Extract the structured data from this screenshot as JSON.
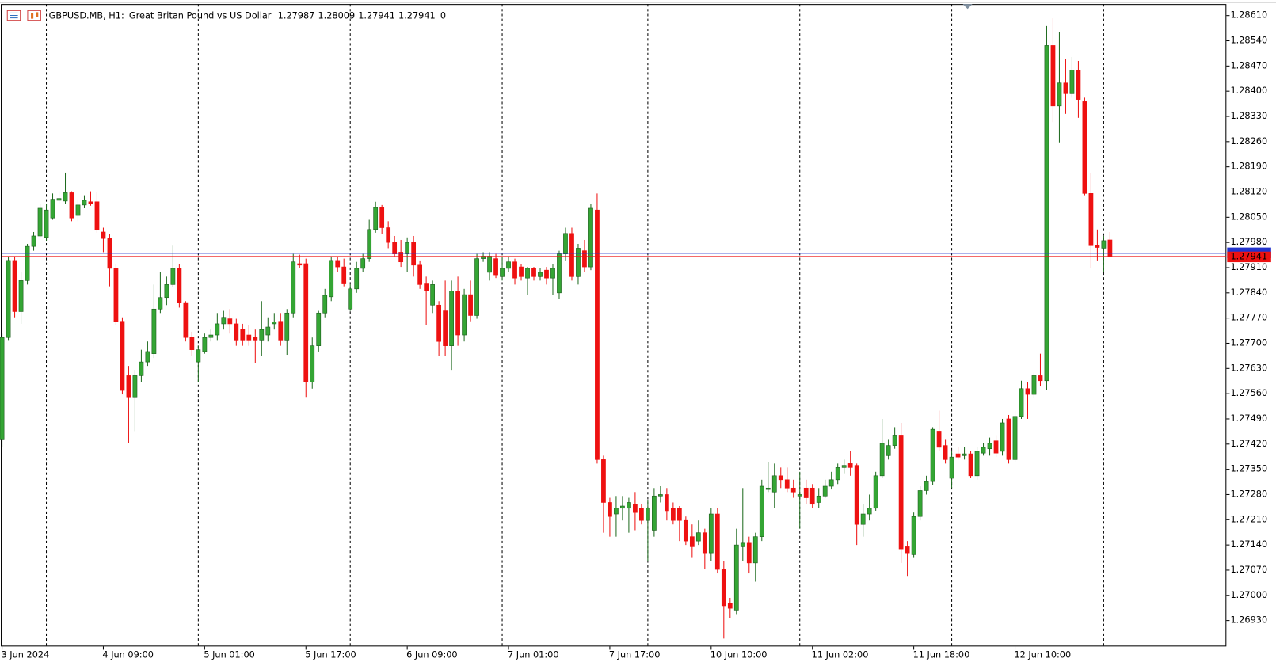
{
  "chart_data": {
    "type": "candlestick",
    "symbol": "GBPUSD.MB, H1:",
    "description": "Great Britan Pound vs US Dollar",
    "volume": 0,
    "x": [
      "3 Jun 2024",
      null,
      null,
      null,
      null,
      null,
      null,
      null,
      null,
      null,
      null,
      null,
      null,
      null,
      null,
      null,
      "4 Jun 09:00",
      null,
      null,
      null,
      null,
      null,
      null,
      null,
      null,
      null,
      null,
      null,
      null,
      null,
      null,
      null,
      "5 Jun 01:00",
      null,
      null,
      null,
      null,
      null,
      null,
      null,
      null,
      null,
      null,
      null,
      null,
      null,
      null,
      null,
      "5 Jun 17:00",
      null,
      null,
      null,
      null,
      null,
      null,
      null,
      null,
      null,
      null,
      null,
      null,
      null,
      null,
      null,
      "6 Jun 09:00",
      null,
      null,
      null,
      null,
      null,
      null,
      null,
      null,
      null,
      null,
      null,
      null,
      null,
      null,
      null,
      "7 Jun 01:00",
      null,
      null,
      null,
      null,
      null,
      null,
      null,
      null,
      null,
      null,
      null,
      null,
      null,
      null,
      null,
      "7 Jun 17:00",
      null,
      null,
      null,
      null,
      null,
      null,
      null,
      null,
      null,
      null,
      null,
      null,
      null,
      null,
      null,
      "10 Jun 10:00",
      null,
      null,
      null,
      null,
      null,
      null,
      null,
      null,
      null,
      null,
      null,
      null,
      null,
      null,
      null,
      "11 Jun 02:00",
      null,
      null,
      null,
      null,
      null,
      null,
      null,
      null,
      null,
      null,
      null,
      null,
      null,
      null,
      null,
      "11 Jun 18:00",
      null,
      null,
      null,
      null,
      null,
      null,
      null,
      null,
      null,
      null,
      null,
      null,
      null,
      null,
      null,
      "12 Jun 10:00",
      null,
      null,
      null,
      null,
      null,
      null,
      null,
      null,
      null,
      null,
      null,
      null,
      null,
      null,
      null
    ],
    "open": [
      1.27434,
      1.27716,
      1.2793,
      1.27788,
      1.27874,
      1.27969,
      1.27998,
      1.27994,
      1.28048,
      1.28097,
      1.28095,
      1.28118,
      1.28055,
      1.28084,
      1.28093,
      1.28093,
      1.28009,
      1.27991,
      1.27908,
      1.27761,
      1.2761,
      1.27551,
      1.2761,
      1.27648,
      1.27671,
      1.27795,
      1.27827,
      1.27863,
      1.27908,
      1.27813,
      1.27716,
      1.27648,
      1.27677,
      1.27716,
      1.27723,
      1.27754,
      1.27768,
      1.27754,
      1.27738,
      1.27723,
      1.27718,
      1.27709,
      1.27723,
      1.27754,
      1.27761,
      1.27709,
      1.27784,
      1.27921,
      1.27921,
      1.27592,
      1.27693,
      1.27784,
      1.27829,
      1.2793,
      1.27912,
      1.27795,
      1.27851,
      1.27908,
      1.27935,
      1.28016,
      1.28077,
      1.28021,
      1.2798,
      1.27953,
      1.27948,
      1.2798,
      1.27917,
      1.27867,
      1.27806,
      1.27806,
      1.2779,
      1.27693,
      1.27845,
      1.27723,
      1.27835,
      1.27777,
      1.27935,
      1.27897,
      1.27935,
      1.27885,
      1.27908,
      1.27926,
      1.27912,
      1.27881,
      1.27908,
      1.27885,
      1.27903,
      1.27881,
      1.2784,
      1.27948,
      1.28005,
      1.27885,
      1.27957,
      1.27912,
      1.2807,
      1.27377,
      1.27258,
      1.27226,
      1.27242,
      1.27242,
      1.27253,
      1.27242,
      1.27208,
      1.27181,
      1.27276,
      1.2728,
      1.27242,
      1.27242,
      1.27208,
      1.27163,
      1.27151,
      1.27174,
      1.27118,
      1.27226,
      1.27072,
      1.26977,
      1.26959,
      1.27135,
      1.27145,
      1.2709,
      1.27163,
      1.27294,
      1.27287,
      1.27332,
      1.27321,
      1.27298,
      1.27276,
      1.27298,
      1.27298,
      1.27258,
      1.27276,
      1.27303,
      1.27321,
      1.27355,
      1.27366,
      1.27361,
      1.27197,
      1.27226,
      1.27242,
      1.27332,
      1.27388,
      1.27416,
      1.27445,
      1.27135,
      1.27113,
      1.27219,
      1.27291,
      1.27316,
      1.27456,
      1.27416,
      1.27325,
      1.27393,
      1.27388,
      1.27393,
      1.27332,
      1.27395,
      1.27407,
      1.27429,
      1.274,
      1.2749,
      1.27377,
      1.27497,
      1.27574,
      1.27558,
      1.2761,
      1.27596,
      1.28527,
      1.28359,
      1.28423,
      1.28393,
      1.28459,
      1.28371,
      1.28116,
      1.27971,
      1.27964,
      1.27987
    ],
    "high": [
      1.27727,
      1.27942,
      1.27942,
      1.27897,
      1.27976,
      1.28009,
      1.28088,
      1.28088,
      1.28116,
      1.28122,
      1.28174,
      1.28122,
      1.281,
      1.28111,
      1.28122,
      1.2812,
      1.28021,
      1.28003,
      1.27919,
      1.27772,
      1.27637,
      1.27626,
      1.27682,
      1.27705,
      1.27863,
      1.27897,
      1.27885,
      1.27971,
      1.27919,
      1.27817,
      1.27732,
      1.27693,
      1.27727,
      1.27738,
      1.27784,
      1.2779,
      1.27795,
      1.27768,
      1.27754,
      1.2775,
      1.27738,
      1.27817,
      1.27772,
      1.27784,
      1.27784,
      1.27795,
      1.27948,
      1.27946,
      1.27935,
      1.27716,
      1.2779,
      1.27851,
      1.27942,
      1.27939,
      1.27935,
      1.27863,
      1.27926,
      1.27948,
      1.28043,
      1.28093,
      1.28084,
      1.28039,
      1.27998,
      1.27987,
      1.27994,
      1.27998,
      1.2793,
      1.27885,
      1.27874,
      1.27817,
      1.27874,
      1.27874,
      1.27885,
      1.27851,
      1.27874,
      1.27948,
      1.27953,
      1.27953,
      1.27948,
      1.27942,
      1.27942,
      1.27935,
      1.27919,
      1.27912,
      1.27912,
      1.27908,
      1.27912,
      1.27919,
      1.27957,
      1.28021,
      1.28021,
      1.27976,
      1.27987,
      1.28088,
      1.28116,
      1.27388,
      1.27271,
      1.27276,
      1.27276,
      1.27271,
      1.27287,
      1.27253,
      1.27264,
      1.27298,
      1.27303,
      1.27298,
      1.27258,
      1.27248,
      1.27219,
      1.27197,
      1.27208,
      1.27185,
      1.27242,
      1.27242,
      1.27095,
      1.26993,
      1.27185,
      1.27298,
      1.27163,
      1.27174,
      1.27321,
      1.2737,
      1.27366,
      1.27355,
      1.27355,
      1.27321,
      1.27343,
      1.27321,
      1.27309,
      1.27298,
      1.27321,
      1.27343,
      1.27366,
      1.27377,
      1.274,
      1.27366,
      1.27253,
      1.2728,
      1.27343,
      1.2749,
      1.27434,
      1.27467,
      1.27479,
      1.27151,
      1.2723,
      1.27303,
      1.27332,
      1.27467,
      1.27513,
      1.27434,
      1.274,
      1.27411,
      1.27411,
      1.274,
      1.27411,
      1.27422,
      1.27438,
      1.27445,
      1.2749,
      1.27501,
      1.27513,
      1.27596,
      1.27592,
      1.27619,
      1.27671,
      1.28581,
      1.28603,
      1.28563,
      1.2849,
      1.28495,
      1.28484,
      1.28382,
      1.28174,
      1.28016,
      1.27998,
      1.28009
    ],
    "low": [
      1.27411,
      1.27709,
      1.27772,
      1.27754,
      1.27863,
      1.27957,
      1.27994,
      1.27985,
      1.28043,
      1.28088,
      1.28088,
      1.28039,
      1.28039,
      1.28075,
      1.28082,
      1.28007,
      1.27953,
      1.27858,
      1.2775,
      1.27558,
      1.27422,
      1.27456,
      1.27592,
      1.27637,
      1.27659,
      1.27784,
      1.27806,
      1.27856,
      1.27799,
      1.27705,
      1.27664,
      1.27592,
      1.27671,
      1.27705,
      1.27709,
      1.27738,
      1.27727,
      1.27693,
      1.27693,
      1.27693,
      1.27646,
      1.27664,
      1.27705,
      1.27738,
      1.27693,
      1.27668,
      1.27772,
      1.27908,
      1.27551,
      1.27574,
      1.27677,
      1.27772,
      1.27817,
      1.27897,
      1.27858,
      1.2779,
      1.2784,
      1.27897,
      1.27926,
      1.28007,
      1.28003,
      1.27964,
      1.27942,
      1.27912,
      1.27897,
      1.27885,
      1.27851,
      1.2775,
      1.27784,
      1.27664,
      1.27664,
      1.27626,
      1.27693,
      1.27705,
      1.27761,
      1.27768,
      1.27926,
      1.27874,
      1.27881,
      1.27874,
      1.27897,
      1.27863,
      1.27874,
      1.27835,
      1.27874,
      1.27874,
      1.27863,
      1.27835,
      1.27822,
      1.2793,
      1.27874,
      1.27863,
      1.27897,
      1.27903,
      1.27366,
      1.27174,
      1.27163,
      1.27163,
      1.27208,
      1.27174,
      1.27181,
      1.27197,
      1.27095,
      1.27163,
      1.27258,
      1.27208,
      1.27197,
      1.27151,
      1.2714,
      1.27106,
      1.2714,
      1.27072,
      1.27095,
      1.27061,
      1.2688,
      1.26937,
      1.26948,
      1.27095,
      1.27061,
      1.27038,
      1.27151,
      1.27287,
      1.27242,
      1.27298,
      1.27287,
      1.27271,
      1.27185,
      1.27253,
      1.27242,
      1.27242,
      1.27271,
      1.27294,
      1.27309,
      1.27339,
      1.27332,
      1.2714,
      1.27163,
      1.27208,
      1.27235,
      1.27325,
      1.27377,
      1.27407,
      1.2709,
      1.27054,
      1.27106,
      1.27208,
      1.2728,
      1.27307,
      1.274,
      1.27366,
      1.27298,
      1.27377,
      1.27377,
      1.27325,
      1.27321,
      1.27388,
      1.27388,
      1.27384,
      1.27388,
      1.27366,
      1.2737,
      1.2749,
      1.2749,
      1.27547,
      1.2758,
      1.27569,
      1.28314,
      1.28258,
      1.28337,
      1.28382,
      1.28326,
      1.28111,
      1.27908,
      1.2793,
      1.27897,
      1.27941
    ],
    "close": [
      1.27716,
      1.2793,
      1.27788,
      1.27874,
      1.27969,
      1.27998,
      1.28075,
      1.2807,
      1.281,
      1.28102,
      1.28118,
      1.28048,
      1.28084,
      1.28097,
      1.28088,
      1.28014,
      1.27991,
      1.27908,
      1.27761,
      1.27569,
      1.27551,
      1.2761,
      1.27648,
      1.27677,
      1.27795,
      1.27827,
      1.27863,
      1.27908,
      1.27813,
      1.27716,
      1.27682,
      1.27682,
      1.27716,
      1.27723,
      1.27754,
      1.27772,
      1.27754,
      1.27709,
      1.27709,
      1.27709,
      1.27709,
      1.27738,
      1.27745,
      1.27759,
      1.27709,
      1.27784,
      1.27926,
      1.27917,
      1.27592,
      1.27693,
      1.27784,
      1.27833,
      1.2793,
      1.27912,
      1.27867,
      1.27851,
      1.27908,
      1.27935,
      1.28016,
      1.28077,
      1.28021,
      1.2798,
      1.27948,
      1.27926,
      1.2798,
      1.27917,
      1.27863,
      1.27845,
      1.27863,
      1.27705,
      1.27693,
      1.27845,
      1.27723,
      1.27835,
      1.27777,
      1.27935,
      1.27942,
      1.27942,
      1.2789,
      1.27908,
      1.27926,
      1.27881,
      1.27885,
      1.27908,
      1.27885,
      1.27897,
      1.27881,
      1.27908,
      1.27948,
      1.28005,
      1.27885,
      1.27964,
      1.27912,
      1.28075,
      1.27377,
      1.27258,
      1.27219,
      1.27242,
      1.27248,
      1.27258,
      1.2723,
      1.27208,
      1.27242,
      1.27276,
      1.2728,
      1.27235,
      1.27208,
      1.27208,
      1.27151,
      1.27135,
      1.27174,
      1.27118,
      1.27226,
      1.27072,
      1.26971,
      1.26964,
      1.2714,
      1.27145,
      1.2709,
      1.27163,
      1.27303,
      1.27298,
      1.27332,
      1.27321,
      1.27298,
      1.27287,
      1.2728,
      1.27271,
      1.27253,
      1.27276,
      1.27303,
      1.27321,
      1.27355,
      1.27361,
      1.27355,
      1.27197,
      1.27226,
      1.27242,
      1.27332,
      1.27422,
      1.27416,
      1.27445,
      1.27129,
      1.27118,
      1.27219,
      1.27291,
      1.27316,
      1.27461,
      1.27411,
      1.27377,
      1.27384,
      1.27384,
      1.27393,
      1.27332,
      1.274,
      1.27411,
      1.27422,
      1.27395,
      1.27479,
      1.27377,
      1.27497,
      1.27574,
      1.27558,
      1.2761,
      1.27596,
      1.28527,
      1.28359,
      1.28423,
      1.28393,
      1.28459,
      1.28377,
      1.28116,
      1.27971,
      1.27966,
      1.27985,
      1.27941
    ],
    "up_color": "#34a534",
    "down_color": "#ee1111",
    "bid": 1.27941,
    "bid_color": "#ee1111",
    "ask": 1.2795,
    "ask_color": "#2233cc",
    "ylim": [
      1.26858,
      1.28642
    ],
    "yticks": [
      {
        "value": 1.2861,
        "label": "1.28610"
      },
      {
        "value": 1.2854,
        "label": "1.28540"
      },
      {
        "value": 1.2847,
        "label": "1.28470"
      },
      {
        "value": 1.284,
        "label": "1.28400"
      },
      {
        "value": 1.2833,
        "label": "1.28330"
      },
      {
        "value": 1.2826,
        "label": "1.28260"
      },
      {
        "value": 1.2819,
        "label": "1.28190"
      },
      {
        "value": 1.2812,
        "label": "1.28120"
      },
      {
        "value": 1.2805,
        "label": "1.28050"
      },
      {
        "value": 1.2798,
        "label": "1.27980"
      },
      {
        "value": 1.2791,
        "label": "1.27910"
      },
      {
        "value": 1.2784,
        "label": "1.27840"
      },
      {
        "value": 1.2777,
        "label": "1.27770"
      },
      {
        "value": 1.277,
        "label": "1.27700"
      },
      {
        "value": 1.2763,
        "label": "1.27630"
      },
      {
        "value": 1.2756,
        "label": "1.27560"
      },
      {
        "value": 1.2749,
        "label": "1.27490"
      },
      {
        "value": 1.2742,
        "label": "1.27420"
      },
      {
        "value": 1.2735,
        "label": "1.27350"
      },
      {
        "value": 1.2728,
        "label": "1.27280"
      },
      {
        "value": 1.2721,
        "label": "1.27210"
      },
      {
        "value": 1.2714,
        "label": "1.27140"
      },
      {
        "value": 1.2707,
        "label": "1.27070"
      },
      {
        "value": 1.27,
        "label": "1.27000"
      },
      {
        "value": 1.2693,
        "label": "1.26930"
      }
    ]
  }
}
